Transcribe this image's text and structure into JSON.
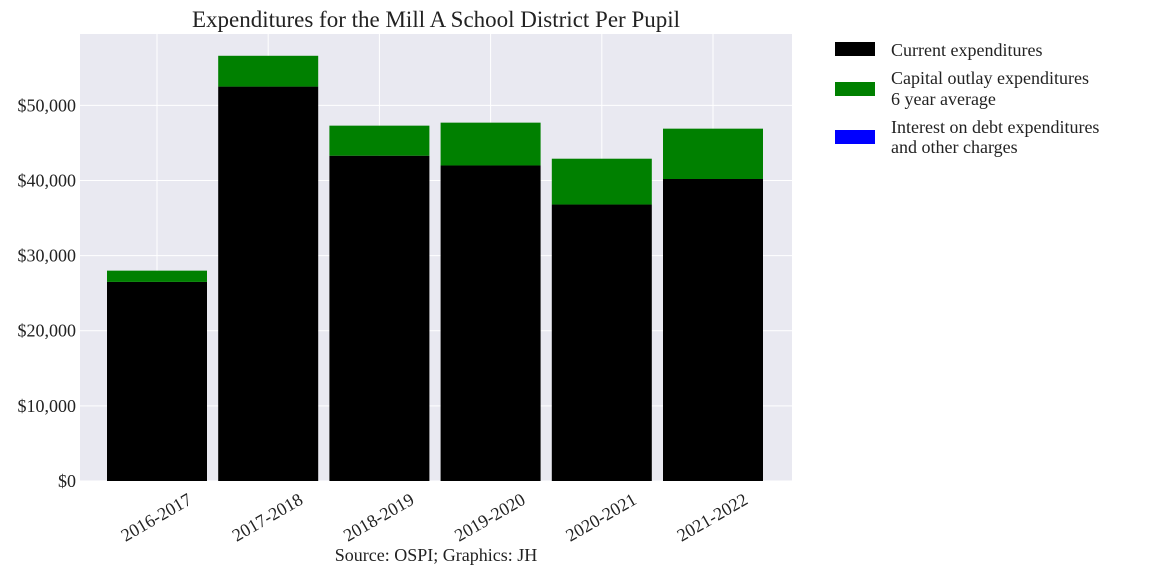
{
  "chart_data": {
    "type": "bar",
    "stacked": true,
    "title": "Expenditures for the Mill A School District Per Pupil",
    "xlabel": "Source: OSPI; Graphics: JH",
    "ylabel": "",
    "categories": [
      "2016-2017",
      "2017-2018",
      "2018-2019",
      "2019-2020",
      "2020-2021",
      "2021-2022"
    ],
    "series": [
      {
        "name": "Current expenditures",
        "color": "#000000",
        "values": [
          26500,
          52500,
          43300,
          42000,
          36800,
          40200
        ]
      },
      {
        "name": "Capital outlay expenditures\n6 year average",
        "color": "#008000",
        "values": [
          1500,
          4100,
          4000,
          5700,
          6100,
          6700
        ]
      },
      {
        "name": "Interest on debt expenditures\nand other charges",
        "color": "#0000ff",
        "values": [
          0,
          0,
          0,
          0,
          0,
          0
        ]
      }
    ],
    "ylim": [
      0,
      59500
    ],
    "yticks": [
      0,
      10000,
      20000,
      30000,
      40000,
      50000
    ],
    "ytick_labels": [
      "$0",
      "$10,000",
      "$20,000",
      "$30,000",
      "$40,000",
      "$50,000"
    ],
    "grid": true,
    "legend_position": "outside-right-top"
  }
}
